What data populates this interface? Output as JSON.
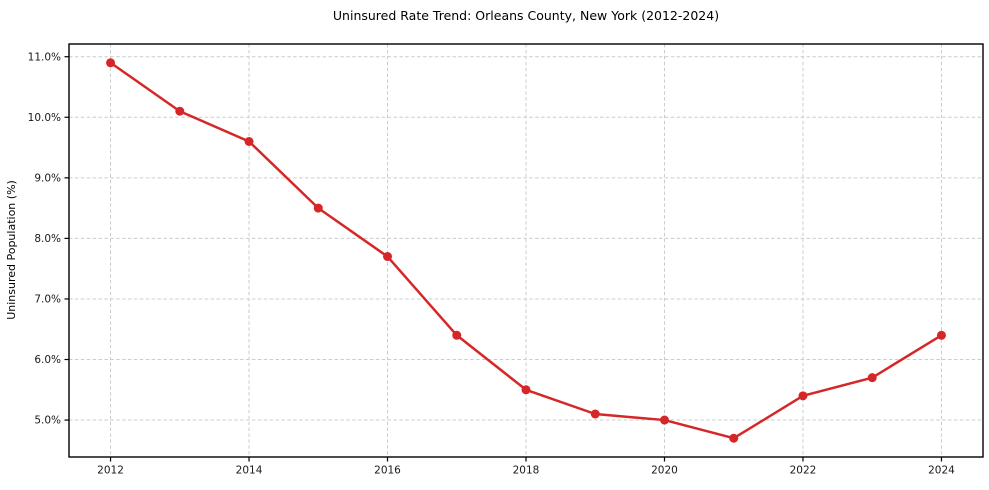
{
  "chart_data": {
    "type": "line",
    "title": "Uninsured Rate Trend: Orleans County, New York (2012-2024)",
    "xlabel": "",
    "ylabel": "Uninsured Population (%)",
    "x": [
      2012,
      2013,
      2014,
      2015,
      2016,
      2017,
      2018,
      2019,
      2020,
      2021,
      2022,
      2023,
      2024
    ],
    "series": [
      {
        "name": "Uninsured Population (%)",
        "values": [
          10.9,
          10.1,
          9.6,
          8.5,
          7.7,
          6.4,
          5.5,
          5.1,
          5.0,
          4.7,
          5.4,
          5.7,
          6.4
        ],
        "color": "#d62728"
      }
    ],
    "xlim": [
      2011.4,
      2024.6
    ],
    "ylim": [
      4.39,
      11.21
    ],
    "x_ticks": [
      2012,
      2014,
      2016,
      2018,
      2020,
      2022,
      2024
    ],
    "x_tick_labels": [
      "2012",
      "2014",
      "2016",
      "2018",
      "2020",
      "2022",
      "2024"
    ],
    "y_ticks": [
      5,
      6,
      7,
      8,
      9,
      10,
      11
    ],
    "y_tick_labels": [
      "5.0%",
      "6.0%",
      "7.0%",
      "8.0%",
      "9.0%",
      "10.0%",
      "11.0%"
    ],
    "grid": true,
    "grid_color": "#cccccc",
    "axis_color": "#000000",
    "background_color": "#ffffff",
    "legend": "none",
    "marker": "circle"
  }
}
